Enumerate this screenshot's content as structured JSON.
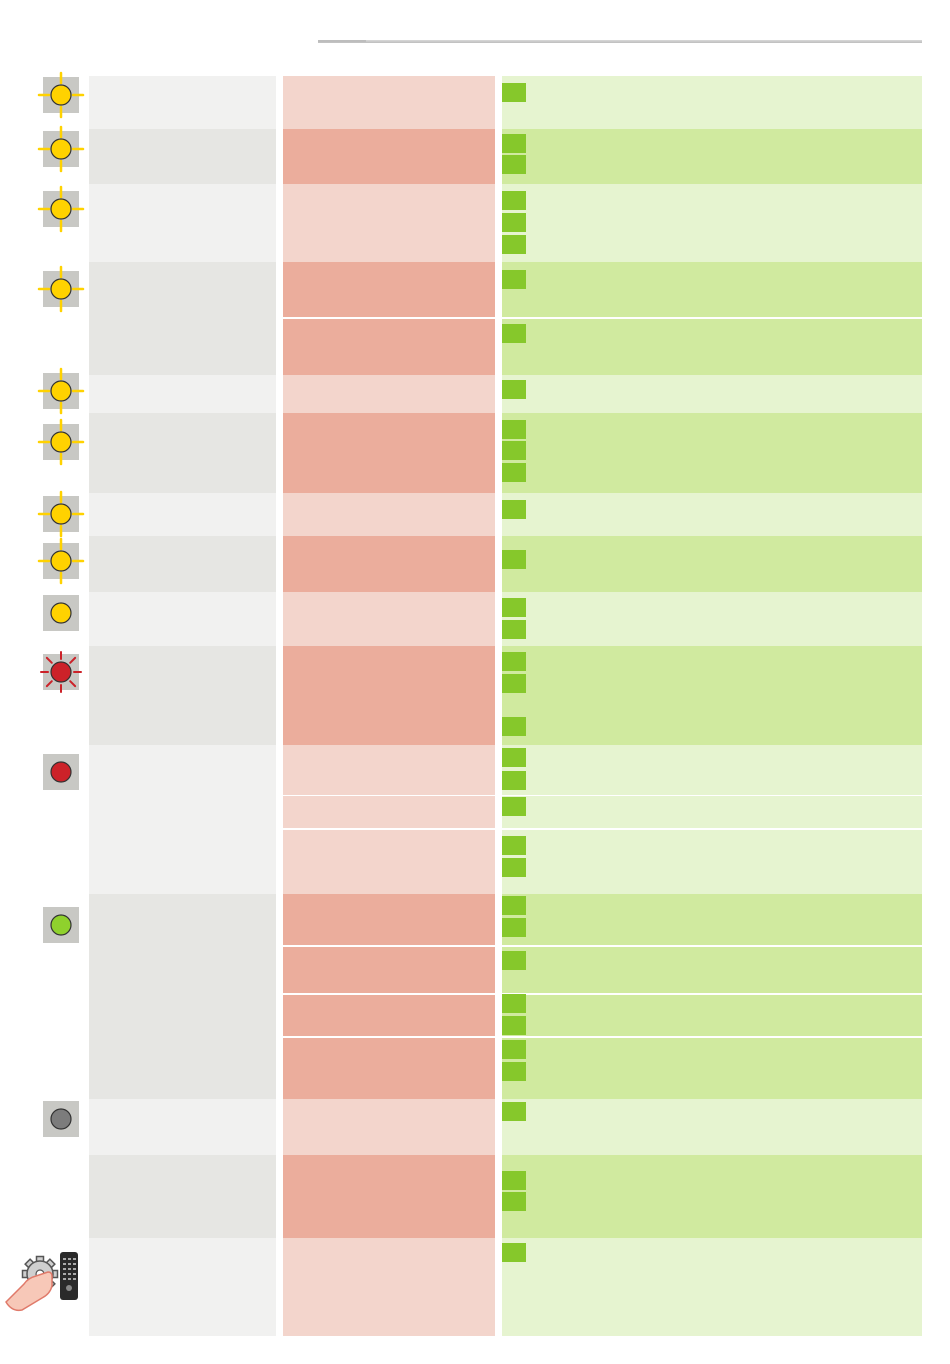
{
  "page": {
    "title": "",
    "header_rule": "section-header-rule"
  },
  "colors": {
    "grey_light": "#f1f1f0",
    "grey_dark": "#e6e6e3",
    "red_light": "#f3d5cc",
    "red_dark": "#ebad9c",
    "green_light": "#e6f4d0",
    "green_dark": "#d0ea9f",
    "bullet_green": "#86c82b",
    "led_yellow": "#ffd200",
    "led_red": "#cc2229",
    "led_green": "#8fd12d",
    "led_grey": "#7c7c7c"
  },
  "table": {
    "rows": [
      {
        "id": 1,
        "status_icon": "yellow-blinking-led-icon",
        "state_text": "",
        "cause_text": "",
        "solutions": [
          "",
          ""
        ]
      },
      {
        "id": 2,
        "status_icon": "yellow-blinking-led-icon",
        "state_text": "",
        "cause_text": "",
        "solutions": [
          "",
          ""
        ]
      },
      {
        "id": 3,
        "status_icon": "yellow-blinking-led-icon",
        "state_text": "",
        "cause_text": "",
        "solutions": [
          "",
          "",
          ""
        ]
      },
      {
        "id": 4,
        "status_icon": "yellow-blinking-led-icon",
        "state_text": "",
        "cause_text": "",
        "solutions": [
          ""
        ]
      },
      {
        "id": 5,
        "status_icon": "",
        "state_text": "",
        "cause_text": "",
        "solutions": [
          ""
        ]
      },
      {
        "id": 6,
        "status_icon": "yellow-blinking-led-icon",
        "state_text": "",
        "cause_text": "",
        "solutions": [
          ""
        ]
      },
      {
        "id": 7,
        "status_icon": "yellow-blinking-led-icon",
        "state_text": "",
        "cause_text": "",
        "solutions": [
          "",
          "",
          ""
        ]
      },
      {
        "id": 8,
        "status_icon": "yellow-blinking-led-icon",
        "state_text": "",
        "cause_text": "",
        "solutions": [
          ""
        ]
      },
      {
        "id": 9,
        "status_icon": "yellow-blinking-led-icon",
        "state_text": "",
        "cause_text": "",
        "solutions": [
          ""
        ]
      },
      {
        "id": 10,
        "status_icon": "yellow-solid-led-icon",
        "state_text": "",
        "cause_text": "",
        "solutions": [
          "",
          ""
        ]
      },
      {
        "id": 11,
        "status_icon": "red-blinking-led-icon",
        "state_text": "",
        "cause_text": "",
        "solutions": [
          "",
          "",
          ""
        ]
      },
      {
        "id": 12,
        "status_icon": "red-solid-led-icon",
        "state_text": "",
        "cause_text": "",
        "solutions": [
          "",
          ""
        ]
      },
      {
        "id": 13,
        "status_icon": "",
        "state_text": "",
        "cause_text": "",
        "solutions": [
          ""
        ]
      },
      {
        "id": 14,
        "status_icon": "",
        "state_text": "",
        "cause_text": "",
        "solutions": [
          "",
          ""
        ]
      },
      {
        "id": 15,
        "status_icon": "green-solid-led-icon",
        "state_text": "",
        "cause_text": "",
        "solutions": [
          "",
          ""
        ]
      },
      {
        "id": 16,
        "status_icon": "",
        "state_text": "",
        "cause_text": "",
        "solutions": [
          ""
        ]
      },
      {
        "id": 17,
        "status_icon": "",
        "state_text": "",
        "cause_text": "",
        "solutions": [
          "",
          ""
        ]
      },
      {
        "id": 18,
        "status_icon": "",
        "state_text": "",
        "cause_text": "",
        "solutions": [
          "",
          ""
        ]
      },
      {
        "id": 19,
        "status_icon": "grey-off-led-icon",
        "state_text": "",
        "cause_text": "",
        "solutions": [
          ""
        ]
      },
      {
        "id": 20,
        "status_icon": "",
        "state_text": "",
        "cause_text": "",
        "solutions": [
          "",
          ""
        ]
      },
      {
        "id": 21,
        "status_icon": "hand-gear-remote-icon",
        "state_text": "",
        "cause_text": "",
        "solutions": [
          ""
        ]
      }
    ]
  }
}
